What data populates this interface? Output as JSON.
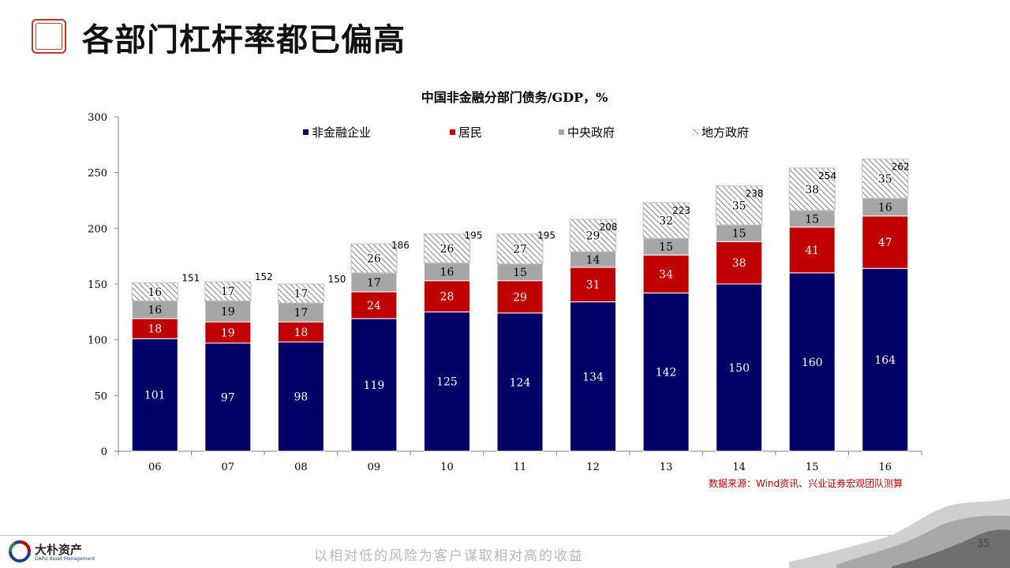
{
  "slide": {
    "title": "各部门杠杆率都已偏高",
    "page_number": "35",
    "source": "数据来源：Wind资讯、兴业证券宏观团队测算"
  },
  "footer": {
    "brand": "大朴资产",
    "brand_en": "DAPU Asset Management",
    "slogan": "以相对低的风险为客户谋取相对高的收益"
  },
  "colors": {
    "non_financial": "#000066",
    "household": "#c00000",
    "central_gov": "#a6a6a6",
    "local_gov_hatch": "#7f7f7f",
    "source_text": "#c00000"
  },
  "chart_data": {
    "type": "bar",
    "stacked": true,
    "title": "中国非金融分部门债务/GDP，%",
    "categories": [
      "06",
      "07",
      "08",
      "09",
      "10",
      "11",
      "12",
      "13",
      "14",
      "15",
      "16"
    ],
    "series": [
      {
        "name": "非金融企业",
        "values": [
          101,
          97,
          98,
          119,
          125,
          124,
          134,
          142,
          150,
          160,
          164
        ]
      },
      {
        "name": "居民",
        "values": [
          18,
          19,
          18,
          24,
          28,
          29,
          31,
          34,
          38,
          41,
          47
        ]
      },
      {
        "name": "中央政府",
        "values": [
          16,
          19,
          17,
          17,
          16,
          15,
          14,
          15,
          15,
          15,
          16
        ]
      },
      {
        "name": "地方政府",
        "values": [
          16,
          17,
          17,
          26,
          26,
          27,
          29,
          32,
          35,
          38,
          35
        ]
      }
    ],
    "totals": [
      151,
      152,
      150,
      186,
      195,
      195,
      208,
      223,
      238,
      254,
      262
    ],
    "ylim": [
      0,
      300
    ],
    "yticks": [
      0,
      50,
      100,
      150,
      200,
      250,
      300
    ],
    "legend_position": "top",
    "grid": false
  }
}
